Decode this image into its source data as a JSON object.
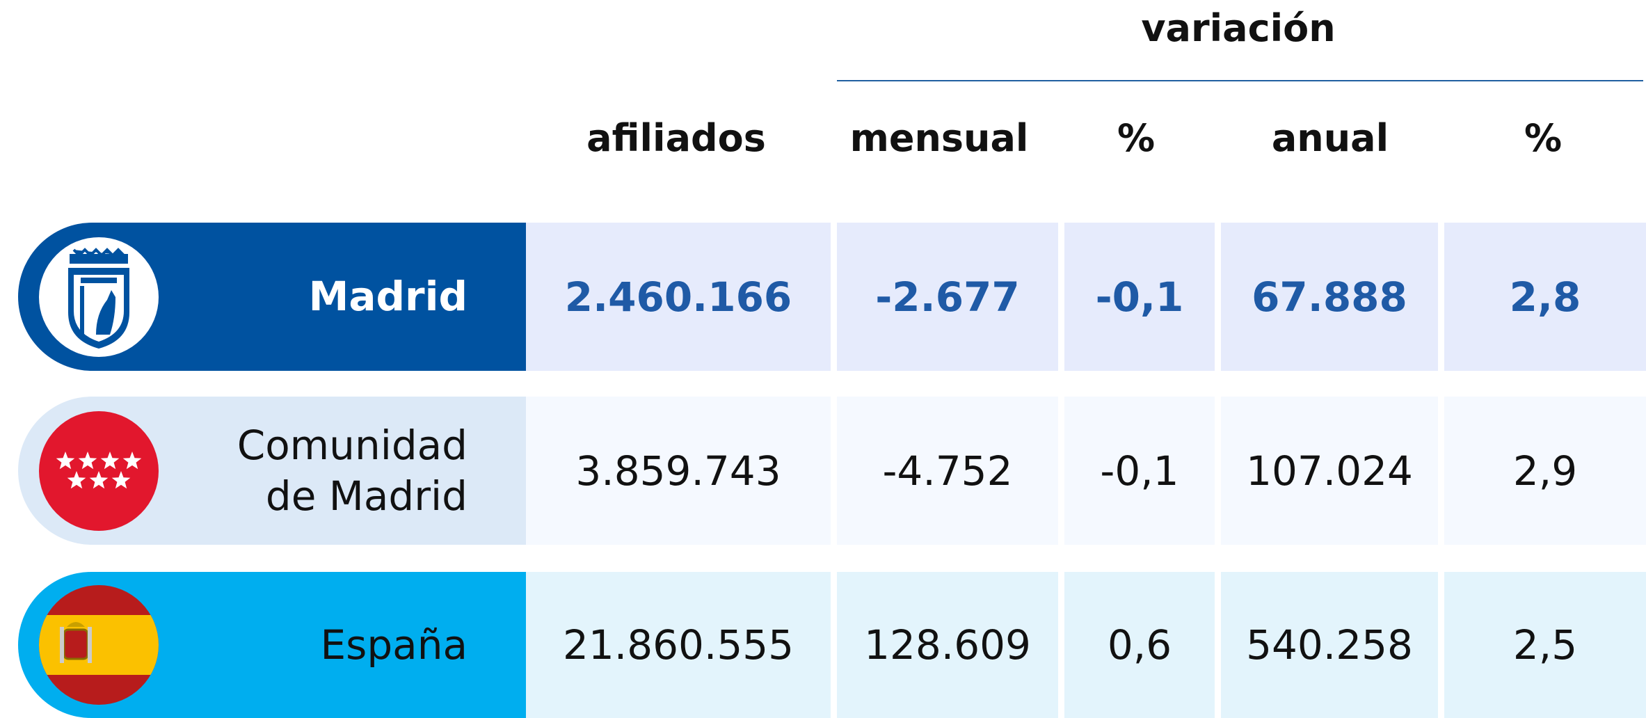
{
  "header": {
    "group": "variación",
    "columns": [
      "afiliados",
      "mensual",
      "%",
      "anual",
      "%"
    ]
  },
  "rows": [
    {
      "label": "Madrid",
      "cells": [
        "2.460.166",
        "-2.677",
        "-0,1",
        "67.888",
        "2,8"
      ]
    },
    {
      "label": "Comunidad de Madrid",
      "cells": [
        "3.859.743",
        "-4.752",
        "-0,1",
        "107.024",
        "2,9"
      ]
    },
    {
      "label": "España",
      "cells": [
        "21.860.555",
        "128.609",
        "0,6",
        "540.258",
        "2,5"
      ]
    }
  ]
}
